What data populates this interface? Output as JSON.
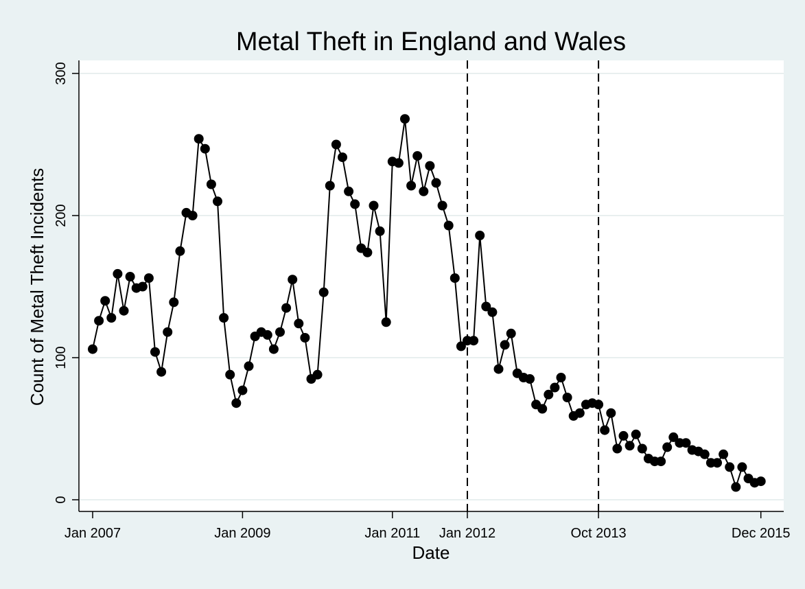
{
  "chart_data": {
    "type": "line",
    "title": "Metal Theft in England and Wales",
    "xlabel": "Date",
    "ylabel": "Count of Metal Theft Incidents",
    "ylim": [
      0,
      300
    ],
    "y_ticks": [
      0,
      100,
      200,
      300
    ],
    "grid": "horizontal",
    "x_ticks": [
      {
        "label": "Jan 2007",
        "date": "2007-01"
      },
      {
        "label": "Jan 2009",
        "date": "2009-01"
      },
      {
        "label": "Jan 2011",
        "date": "2011-01"
      },
      {
        "label": "Jan 2012",
        "date": "2012-01"
      },
      {
        "label": "Oct 2013",
        "date": "2013-10"
      },
      {
        "label": "Dec 2015",
        "date": "2015-12"
      }
    ],
    "reference_lines": [
      {
        "date": "2012-01",
        "style": "dashed"
      },
      {
        "date": "2013-10",
        "style": "dashed"
      }
    ],
    "series": [
      {
        "marker": "circle",
        "color": "#000000",
        "start": "2007-01",
        "frequency": "monthly",
        "values": [
          106,
          126,
          140,
          128,
          159,
          133,
          157,
          149,
          150,
          156,
          104,
          90,
          118,
          139,
          175,
          202,
          200,
          254,
          247,
          222,
          210,
          128,
          88,
          68,
          77,
          94,
          115,
          118,
          116,
          106,
          118,
          135,
          155,
          124,
          114,
          85,
          88,
          146,
          221,
          250,
          241,
          217,
          208,
          177,
          174,
          207,
          189,
          125,
          238,
          237,
          268,
          221,
          242,
          217,
          235,
          223,
          207,
          193,
          156,
          108,
          112,
          112,
          186,
          136,
          132,
          92,
          109,
          117,
          89,
          86,
          85,
          67,
          64,
          74,
          79,
          86,
          72,
          59,
          61,
          67,
          68,
          67,
          49,
          61,
          36,
          45,
          38,
          46,
          36,
          29,
          27,
          27,
          37,
          44,
          40,
          40,
          35,
          34,
          32,
          26,
          26,
          32,
          23,
          9,
          23,
          15,
          12,
          13
        ]
      }
    ]
  }
}
